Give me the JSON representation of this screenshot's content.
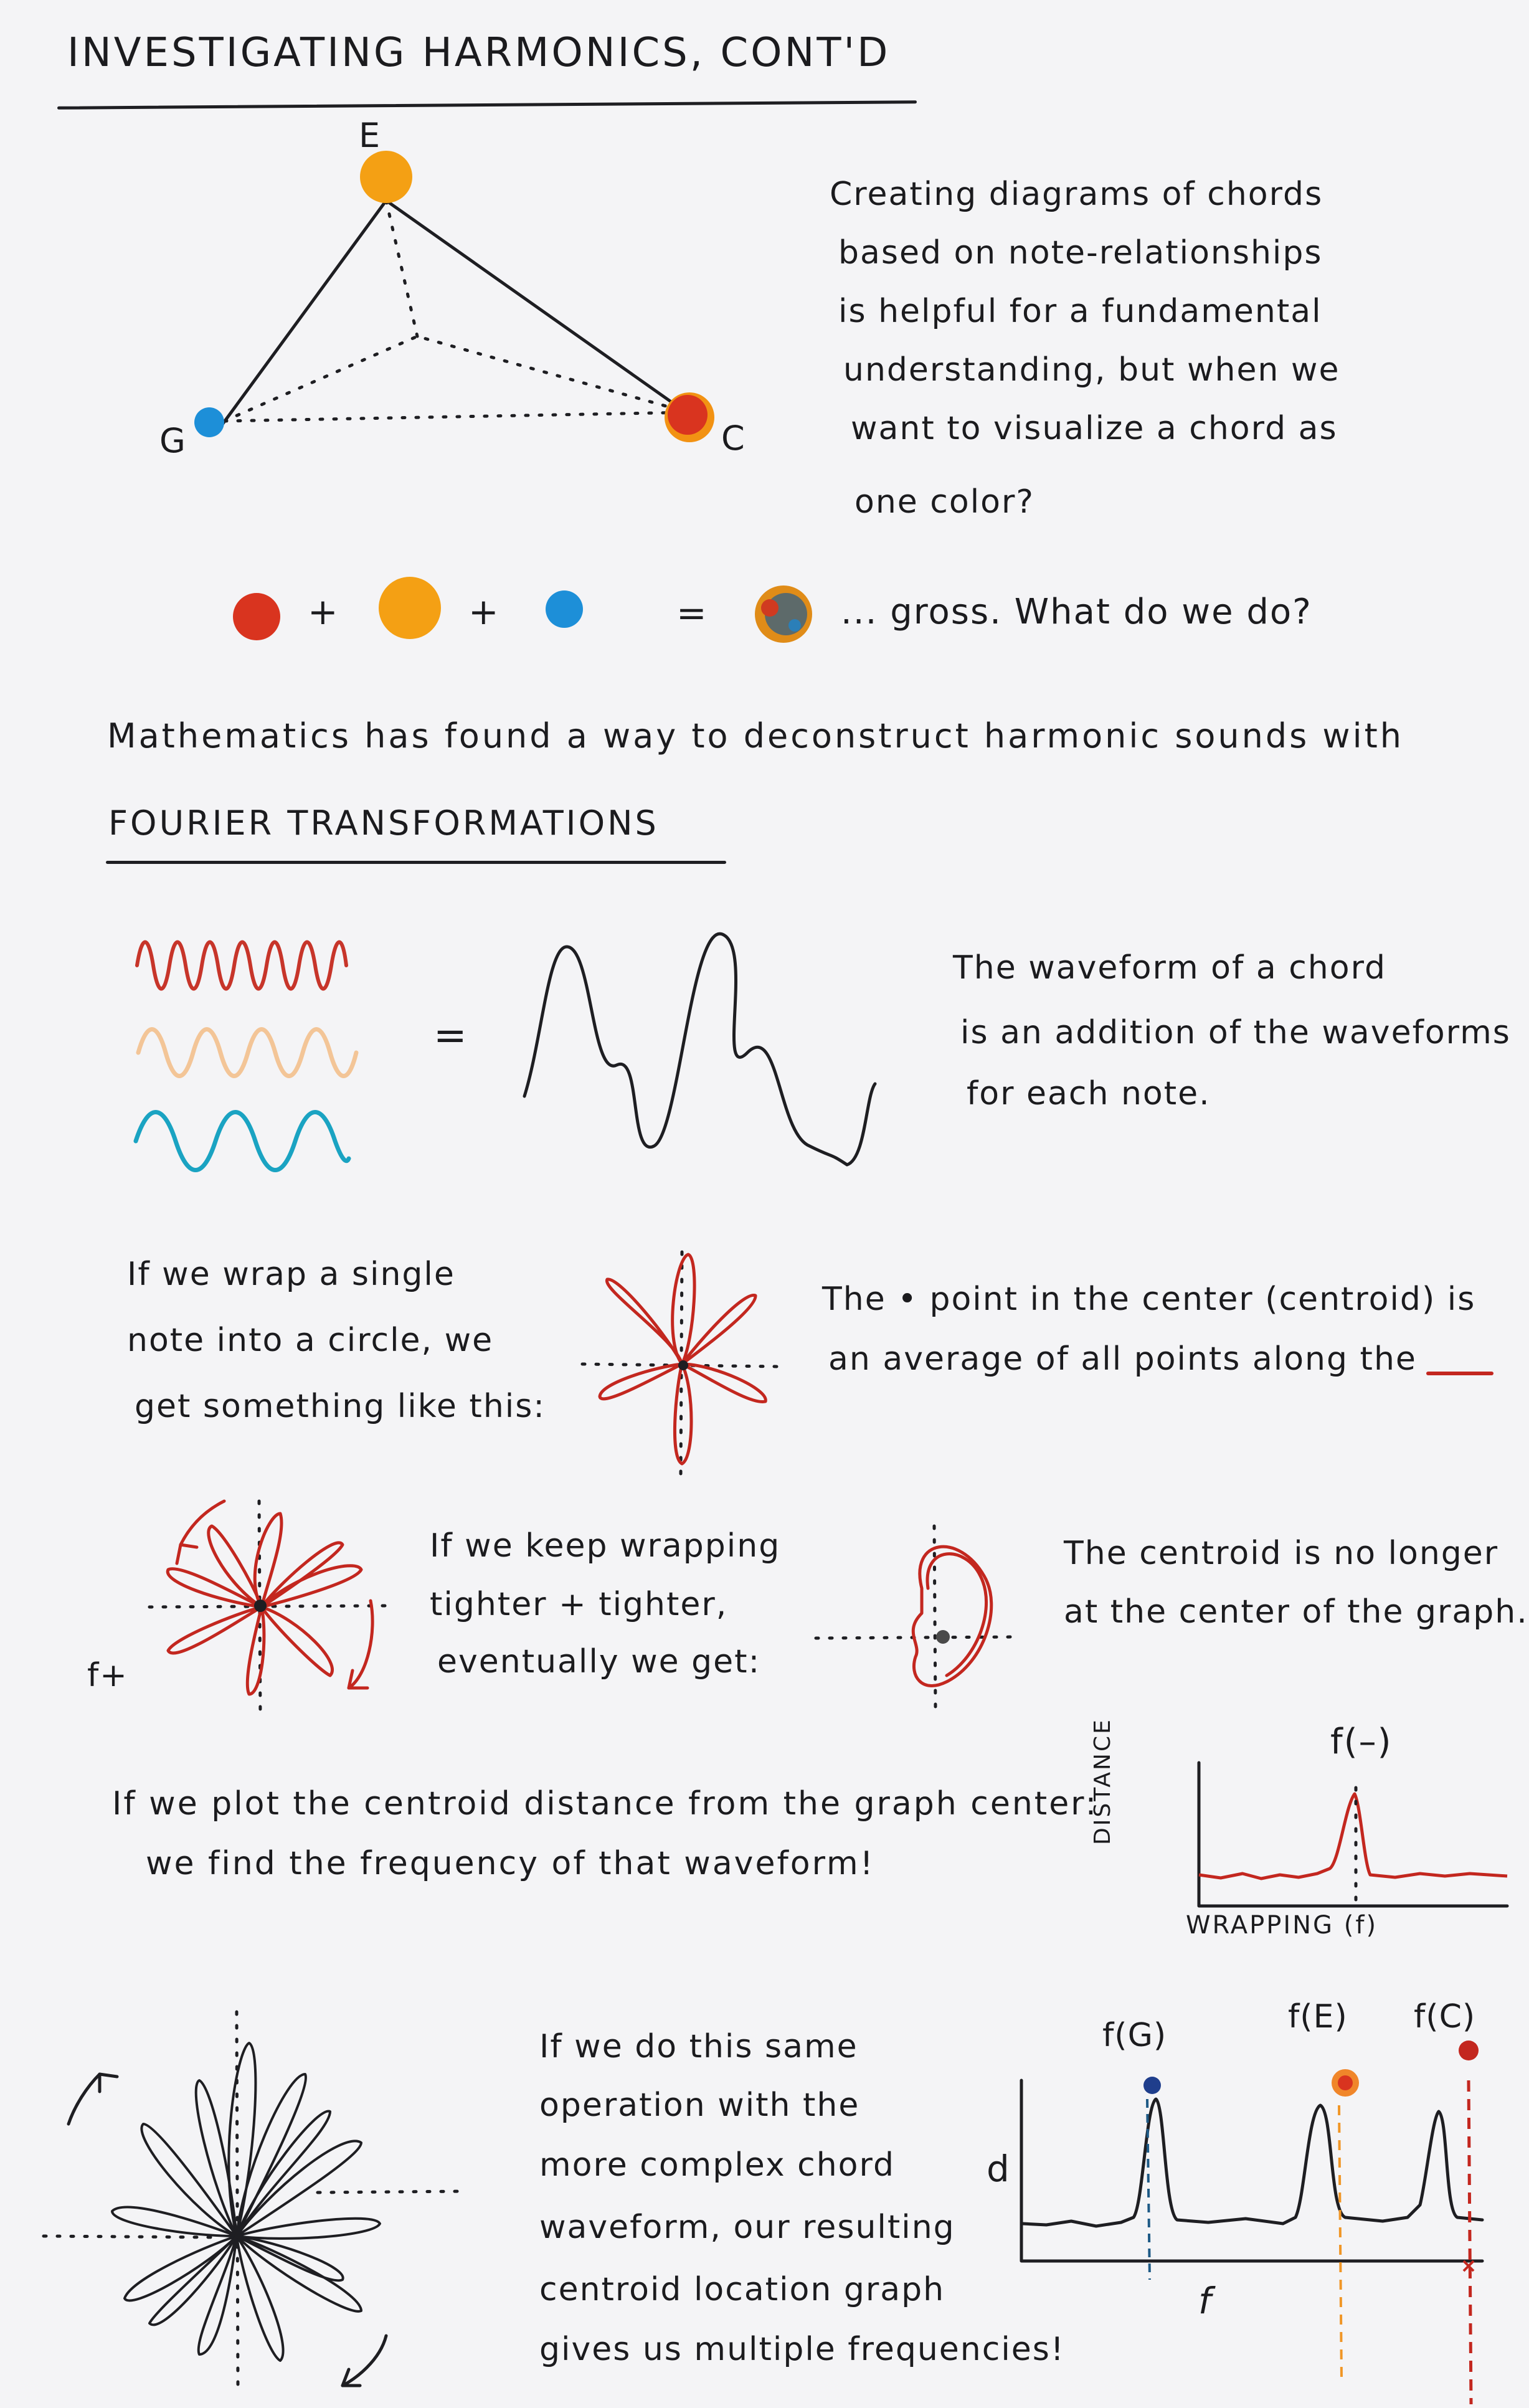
{
  "title": "INVESTIGATING HARMONICS, CONT'D",
  "triad": {
    "top": "E",
    "left": "G",
    "right": "C"
  },
  "colors": {
    "red": "#d9341f",
    "orange": "#f4a014",
    "blue": "#1d8fd8",
    "pale_orange": "#f6c79a",
    "teal": "#1ea8c6",
    "ink": "#1e1e22",
    "navy": "#1f3e8c"
  },
  "intro_lines": [
    "Creating diagrams of chords",
    "based on note-relationships",
    "is helpful for a fundamental",
    "understanding, but when we",
    "want to visualize a chord as",
    "one color?"
  ],
  "mixing": {
    "plus1": "+",
    "plus2": "+",
    "equals": "=",
    "caption": "... gross. What do we do?"
  },
  "math_line": "Mathematics has found a way to deconstruct harmonic sounds with",
  "fourier_heading": "FOURIER TRANSFORMATIONS",
  "waves_equals": "=",
  "waveform_lines": [
    "The waveform of a chord",
    "is an addition of the waveforms",
    "for each note."
  ],
  "wrap_lines": [
    "If we wrap a single",
    "note into a circle, we",
    "get something like this:"
  ],
  "centroid_lines": [
    "The • point in the center (centroid) is",
    "an average of all points along the"
  ],
  "f_plus": "f+",
  "keep_lines": [
    "If we keep wrapping",
    "tighter + tighter,",
    "eventually we get:"
  ],
  "nolonger_lines": [
    "The centroid is no longer",
    "at the center of the graph."
  ],
  "plot_lines": [
    "If we plot the centroid distance from the graph center:",
    "we find the frequency of that waveform!"
  ],
  "small_graph": {
    "peak_label": "f(–)",
    "ylabel": "DISTANCE",
    "xlabel": "WRAPPING (f)"
  },
  "final_lines": [
    "If we do this same",
    "operation with the",
    "more complex chord",
    "waveform, our resulting",
    "centroid location graph",
    "gives us multiple frequencies!"
  ],
  "big_graph": {
    "peaks": [
      "f(G)",
      "f(E)",
      "f(C)"
    ],
    "ylabel": "d",
    "xlabel": "f"
  }
}
